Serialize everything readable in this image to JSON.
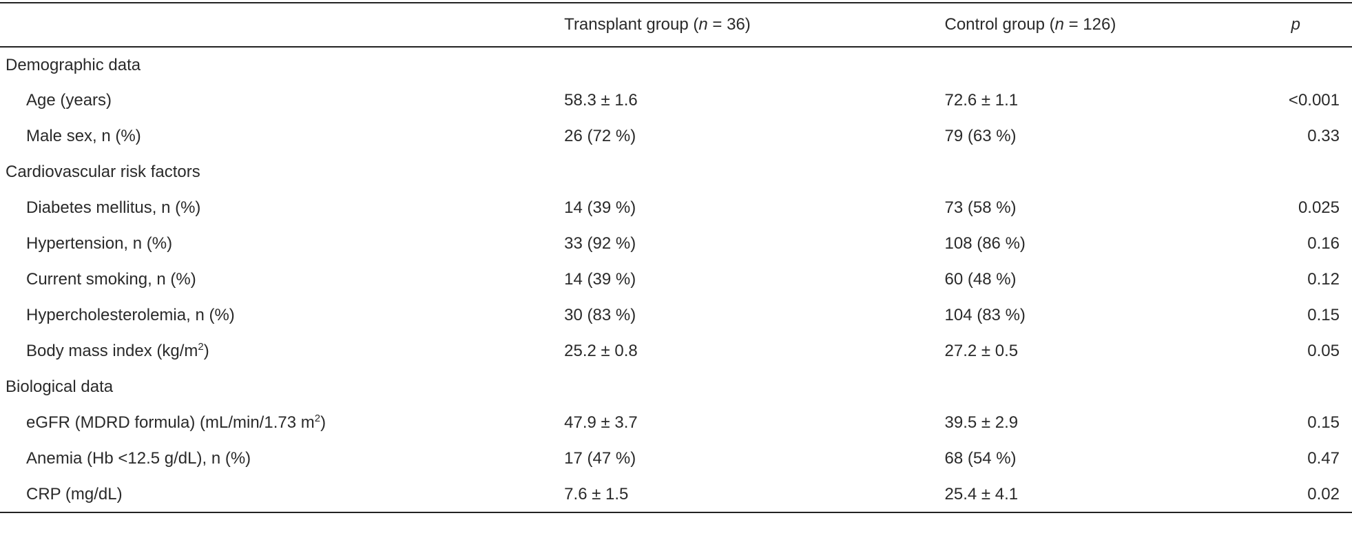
{
  "table": {
    "header": {
      "transplant": [
        "Transplant group (",
        "n",
        " = 36)"
      ],
      "control": [
        "Control group (",
        "n",
        " = 126)"
      ],
      "p": "p"
    },
    "sections": [
      {
        "title": "Demographic data",
        "rows": [
          {
            "label": "Age (years)",
            "transplant": "58.3 ± 1.6",
            "control": "72.6 ± 1.1",
            "p": "<0.001"
          },
          {
            "label": "Male sex, n (%)",
            "transplant": "26 (72 %)",
            "control": "79 (63 %)",
            "p": "0.33"
          }
        ]
      },
      {
        "title": "Cardiovascular risk factors",
        "rows": [
          {
            "label": "Diabetes mellitus, n (%)",
            "transplant": "14 (39 %)",
            "control": "73 (58 %)",
            "p": "0.025"
          },
          {
            "label": "Hypertension, n (%)",
            "transplant": "33 (92 %)",
            "control": "108 (86 %)",
            "p": "0.16"
          },
          {
            "label": "Current smoking, n (%)",
            "transplant": "14 (39 %)",
            "control": "60 (48 %)",
            "p": "0.12"
          },
          {
            "label": "Hypercholesterolemia, n (%)",
            "transplant": "30 (83 %)",
            "control": "104 (83 %)",
            "p": "0.15"
          },
          {
            "label": "Body mass index (kg/m",
            "sup": "2",
            "label_end": ")",
            "transplant": "25.2 ± 0.8",
            "control": "27.2 ± 0.5",
            "p": "0.05"
          }
        ]
      },
      {
        "title": "Biological data",
        "rows": [
          {
            "label": "eGFR (MDRD formula) (mL/min/1.73 m",
            "sup": "2",
            "label_end": ")",
            "transplant": "47.9 ± 3.7",
            "control": "39.5 ± 2.9",
            "p": "0.15"
          },
          {
            "label": "Anemia (Hb <12.5 g/dL), n (%)",
            "transplant": "17 (47 %)",
            "control": "68 (54 %)",
            "p": "0.47"
          },
          {
            "label": "CRP (mg/dL)",
            "transplant": "7.6 ± 1.5",
            "control": "25.4 ± 4.1",
            "p": "0.02"
          }
        ]
      }
    ]
  }
}
